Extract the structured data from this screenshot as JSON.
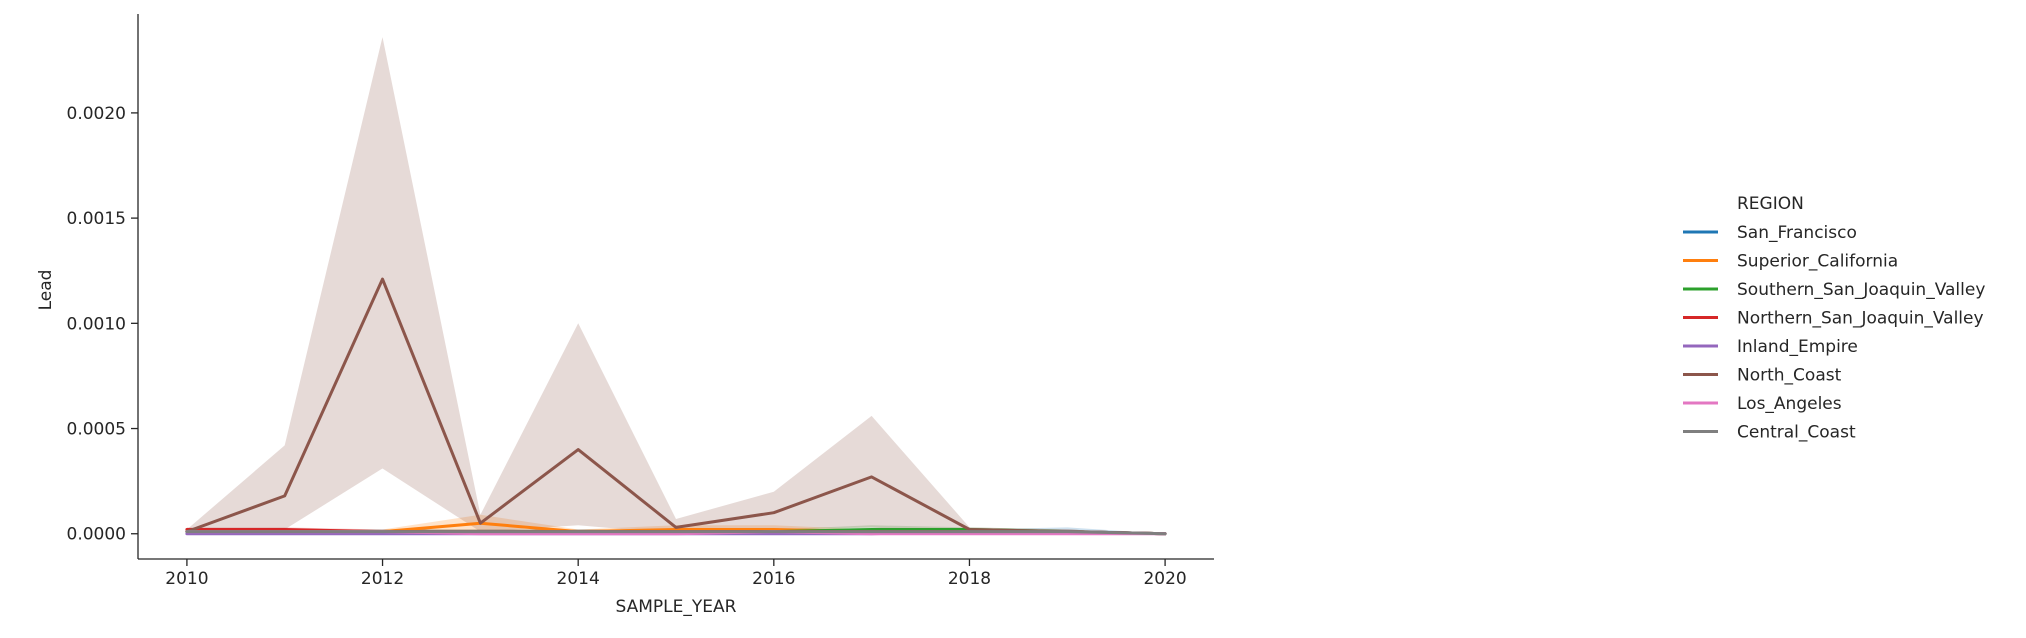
{
  "chart_data": {
    "type": "line",
    "title": "",
    "xlabel": "SAMPLE_YEAR",
    "ylabel": "Lead",
    "xlim": [
      2009.5,
      2020.5
    ],
    "ylim": [
      -0.00012,
      0.00247
    ],
    "x_ticks": [
      2010,
      2012,
      2014,
      2016,
      2018,
      2020
    ],
    "x_tick_labels": [
      "2010",
      "2012",
      "2014",
      "2016",
      "2018",
      "2020"
    ],
    "y_ticks": [
      0.0,
      0.0005,
      0.001,
      0.0015,
      0.002
    ],
    "y_tick_labels": [
      "0.0000",
      "0.0005",
      "0.0010",
      "0.0015",
      "0.0020"
    ],
    "grid": false,
    "legend": {
      "title": "REGION",
      "placement": "right"
    },
    "x": [
      2010,
      2011,
      2012,
      2013,
      2014,
      2015,
      2016,
      2017,
      2018,
      2019,
      2020
    ],
    "series": [
      {
        "name": "San_Francisco",
        "color": "#1f77b4",
        "values": [
          1e-05,
          1e-05,
          1e-05,
          1e-05,
          1e-05,
          1e-05,
          1e-05,
          1e-05,
          1e-05,
          1e-05,
          0.0
        ],
        "lower": [
          0.0,
          0.0,
          0.0,
          0.0,
          0.0,
          0.0,
          0.0,
          0.0,
          0.0,
          0.0,
          0.0
        ],
        "upper": [
          2e-05,
          2e-05,
          2e-05,
          2e-05,
          2e-05,
          2e-05,
          2e-05,
          2e-05,
          2e-05,
          3e-05,
          0.0
        ]
      },
      {
        "name": "Superior_California",
        "color": "#ff7f0e",
        "values": [
          1e-05,
          1e-05,
          1e-05,
          5e-05,
          1e-05,
          2e-05,
          2e-05,
          1e-05,
          1e-05,
          1e-05,
          0.0
        ],
        "lower": [
          0.0,
          0.0,
          0.0,
          1e-05,
          0.0,
          0.0,
          0.0,
          0.0,
          0.0,
          0.0,
          0.0
        ],
        "upper": [
          2e-05,
          2e-05,
          2e-05,
          9e-05,
          2e-05,
          4e-05,
          4e-05,
          2e-05,
          2e-05,
          2e-05,
          0.0
        ]
      },
      {
        "name": "Southern_San_Joaquin_Valley",
        "color": "#2ca02c",
        "values": [
          1e-05,
          1e-05,
          1e-05,
          1e-05,
          1e-05,
          1e-05,
          1e-05,
          2e-05,
          2e-05,
          1e-05,
          0.0
        ],
        "lower": [
          0.0,
          0.0,
          0.0,
          0.0,
          0.0,
          0.0,
          0.0,
          0.0,
          0.0,
          0.0,
          0.0
        ],
        "upper": [
          2e-05,
          2e-05,
          2e-05,
          2e-05,
          2e-05,
          2e-05,
          2e-05,
          4e-05,
          3e-05,
          2e-05,
          0.0
        ]
      },
      {
        "name": "Northern_San_Joaquin_Valley",
        "color": "#d62728",
        "values": [
          2e-05,
          2e-05,
          1e-05,
          1e-05,
          1e-05,
          1e-05,
          1e-05,
          1e-05,
          1e-05,
          1e-05,
          0.0
        ],
        "lower": [
          1e-05,
          1e-05,
          0.0,
          0.0,
          0.0,
          0.0,
          0.0,
          0.0,
          0.0,
          0.0,
          0.0
        ],
        "upper": [
          3e-05,
          3e-05,
          2e-05,
          2e-05,
          2e-05,
          2e-05,
          2e-05,
          2e-05,
          2e-05,
          2e-05,
          0.0
        ]
      },
      {
        "name": "Inland_Empire",
        "color": "#9467bd",
        "values": [
          0.0,
          0.0,
          0.0,
          0.0,
          0.0,
          0.0,
          0.0,
          0.0,
          1e-05,
          1e-05,
          0.0
        ],
        "lower": [
          0.0,
          0.0,
          0.0,
          0.0,
          0.0,
          0.0,
          0.0,
          0.0,
          0.0,
          0.0,
          0.0
        ],
        "upper": [
          1e-05,
          1e-05,
          1e-05,
          1e-05,
          1e-05,
          1e-05,
          1e-05,
          1e-05,
          2e-05,
          2e-05,
          0.0
        ]
      },
      {
        "name": "North_Coast",
        "color": "#8c564b",
        "values": [
          1e-05,
          0.00018,
          0.00121,
          5e-05,
          0.0004,
          3e-05,
          0.0001,
          0.00027,
          2e-05,
          1e-05,
          0.0
        ],
        "lower": [
          0.0,
          2e-05,
          0.00031,
          1e-05,
          4e-05,
          0.0,
          2e-05,
          3e-05,
          0.0,
          0.0,
          0.0
        ],
        "upper": [
          2e-05,
          0.00042,
          0.00236,
          9e-05,
          0.001,
          7e-05,
          0.0002,
          0.00056,
          3e-05,
          2e-05,
          0.0
        ]
      },
      {
        "name": "Los_Angeles",
        "color": "#e377c2",
        "values": [
          1e-05,
          1e-05,
          1e-05,
          0.0,
          0.0,
          0.0,
          1e-05,
          0.0,
          0.0,
          0.0,
          0.0
        ],
        "lower": [
          0.0,
          0.0,
          0.0,
          0.0,
          0.0,
          0.0,
          0.0,
          0.0,
          0.0,
          0.0,
          0.0
        ],
        "upper": [
          2e-05,
          2e-05,
          2e-05,
          1e-05,
          1e-05,
          1e-05,
          2e-05,
          1e-05,
          1e-05,
          1e-05,
          0.0
        ]
      },
      {
        "name": "Central_Coast",
        "color": "#7f7f7f",
        "values": [
          1e-05,
          1e-05,
          1e-05,
          1e-05,
          1e-05,
          1e-05,
          1e-05,
          1e-05,
          1e-05,
          1e-05,
          0.0
        ],
        "lower": [
          0.0,
          0.0,
          0.0,
          0.0,
          0.0,
          0.0,
          0.0,
          0.0,
          0.0,
          0.0,
          0.0
        ],
        "upper": [
          2e-05,
          2e-05,
          2e-05,
          2e-05,
          2e-05,
          2e-05,
          2e-05,
          2e-05,
          2e-05,
          2e-05,
          0.0
        ]
      }
    ]
  }
}
